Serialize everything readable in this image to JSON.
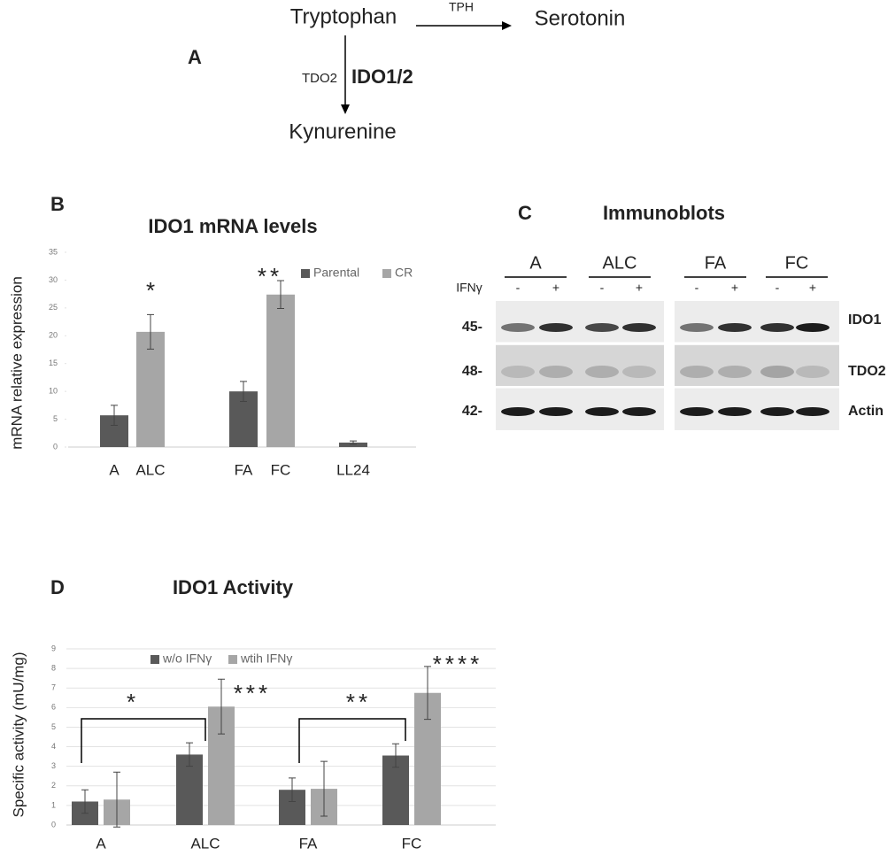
{
  "pathway": {
    "panel": "A",
    "substrate": "Tryptophan",
    "enzyme_top": "TPH",
    "product_top": "Serotonin",
    "enzyme_minor": "TDO2",
    "enzyme_major": "IDO1/2",
    "product_bottom": "Kynurenine"
  },
  "immunoblot": {
    "panel": "C",
    "title": "Immunoblots",
    "groups": [
      "A",
      "ALC",
      "FA",
      "FC"
    ],
    "treatment": "IFNγ",
    "lanes": [
      "-",
      "+",
      "-",
      "+",
      "-",
      "+",
      "-",
      "+"
    ],
    "markers": [
      "45-",
      "48-",
      "42-"
    ],
    "proteins": [
      "IDO1",
      "TDO2",
      "Actin"
    ]
  },
  "chart_data": [
    {
      "type": "bar",
      "panel": "B",
      "title": "IDO1 mRNA levels",
      "y_label": "mRNA relative expression",
      "categories": [
        "A",
        "ALC",
        "FA",
        "FC",
        "LL24"
      ],
      "series": [
        {
          "name": "Parental",
          "color": "#595959",
          "values": [
            5.7,
            null,
            10,
            null,
            0.8
          ],
          "errors": [
            1.8,
            null,
            1.8,
            null,
            0.3
          ]
        },
        {
          "name": "CR",
          "color": "#a6a6a6",
          "values": [
            null,
            20.7,
            null,
            27.4,
            null
          ],
          "errors": [
            null,
            3.1,
            null,
            2.5,
            null
          ]
        }
      ],
      "annotations": [
        "*",
        "**"
      ],
      "ylim": [
        0,
        35
      ],
      "yticks": [
        0,
        5,
        10,
        15,
        20,
        25,
        30,
        35
      ],
      "grid": false
    },
    {
      "type": "bar",
      "panel": "D",
      "title": "IDO1 Activity",
      "y_label": "Specific activity  (mU/mg)",
      "categories": [
        "A",
        "ALC",
        "FA",
        "FC"
      ],
      "series": [
        {
          "name": "w/o IFNγ",
          "color": "#595959",
          "values": [
            1.2,
            3.6,
            1.8,
            3.55
          ],
          "errors": [
            0.6,
            0.6,
            0.6,
            0.6
          ]
        },
        {
          "name": "wtih IFNγ",
          "color": "#a6a6a6",
          "values": [
            1.3,
            6.05,
            1.85,
            6.75
          ],
          "errors": [
            1.4,
            1.4,
            1.4,
            1.35
          ]
        }
      ],
      "annotations": [
        "*",
        "***",
        "**",
        "****"
      ],
      "ylim": [
        0,
        9
      ],
      "yticks": [
        0,
        1,
        2,
        3,
        4,
        5,
        6,
        7,
        8,
        9
      ],
      "grid": true
    }
  ]
}
